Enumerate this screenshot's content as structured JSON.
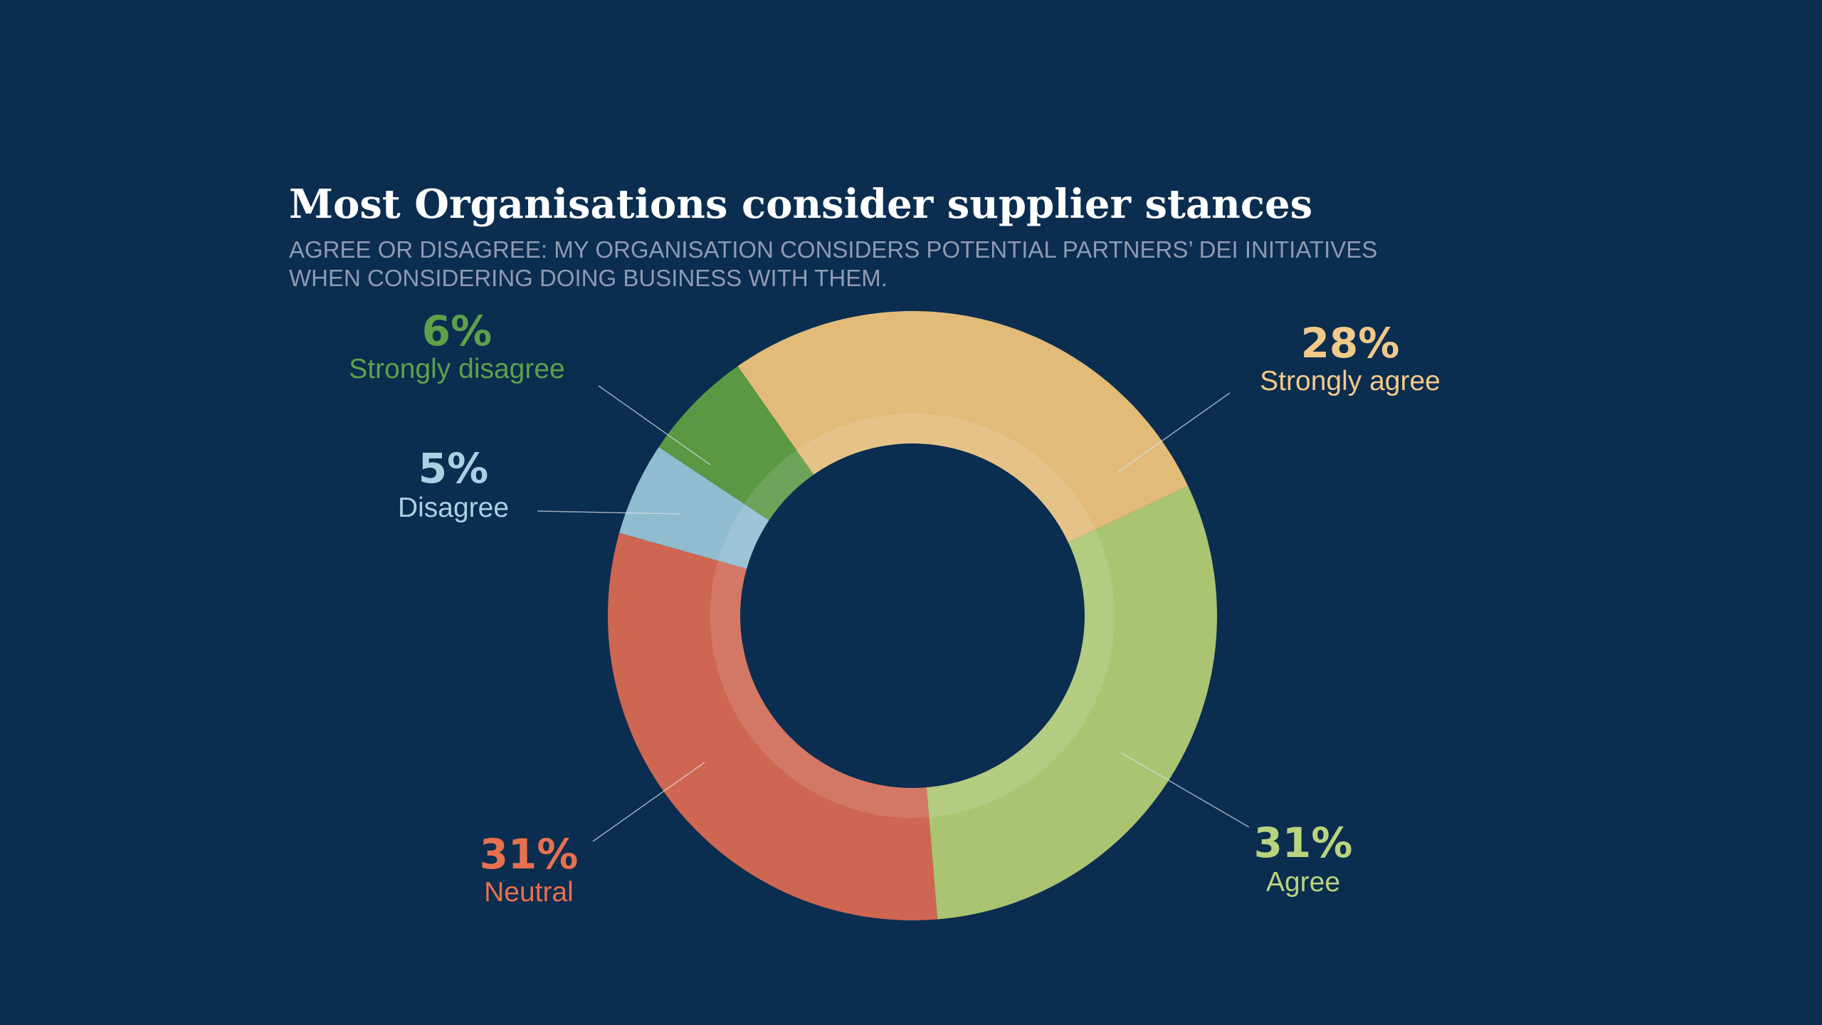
{
  "chart_data": {
    "type": "donut",
    "title": "Most Organisations consider supplier stances",
    "subtitle": [
      "AGREE OR DISAGREE: MY ORGANISATION CONSIDERS POTENTIAL PARTNERS’ DEI INITIATIVES",
      "WHEN CONSIDERING DOING BUSINESS WITH THEM."
    ],
    "categories": [
      "Strongly agree",
      "Agree",
      "Neutral",
      "Disagree",
      "Strongly disagree"
    ],
    "values": [
      28,
      31,
      31,
      5,
      6
    ],
    "value_labels": [
      "28%",
      "31%",
      "31%",
      "5%",
      "6%"
    ],
    "colors": [
      "#e2bb78",
      "#aac471",
      "#cf6651",
      "#8fbccf",
      "#5a9844"
    ],
    "label_colors": [
      "#f2c98a",
      "#b9d37f",
      "#e8704f",
      "#a9d0e3",
      "#5ea14a"
    ]
  }
}
